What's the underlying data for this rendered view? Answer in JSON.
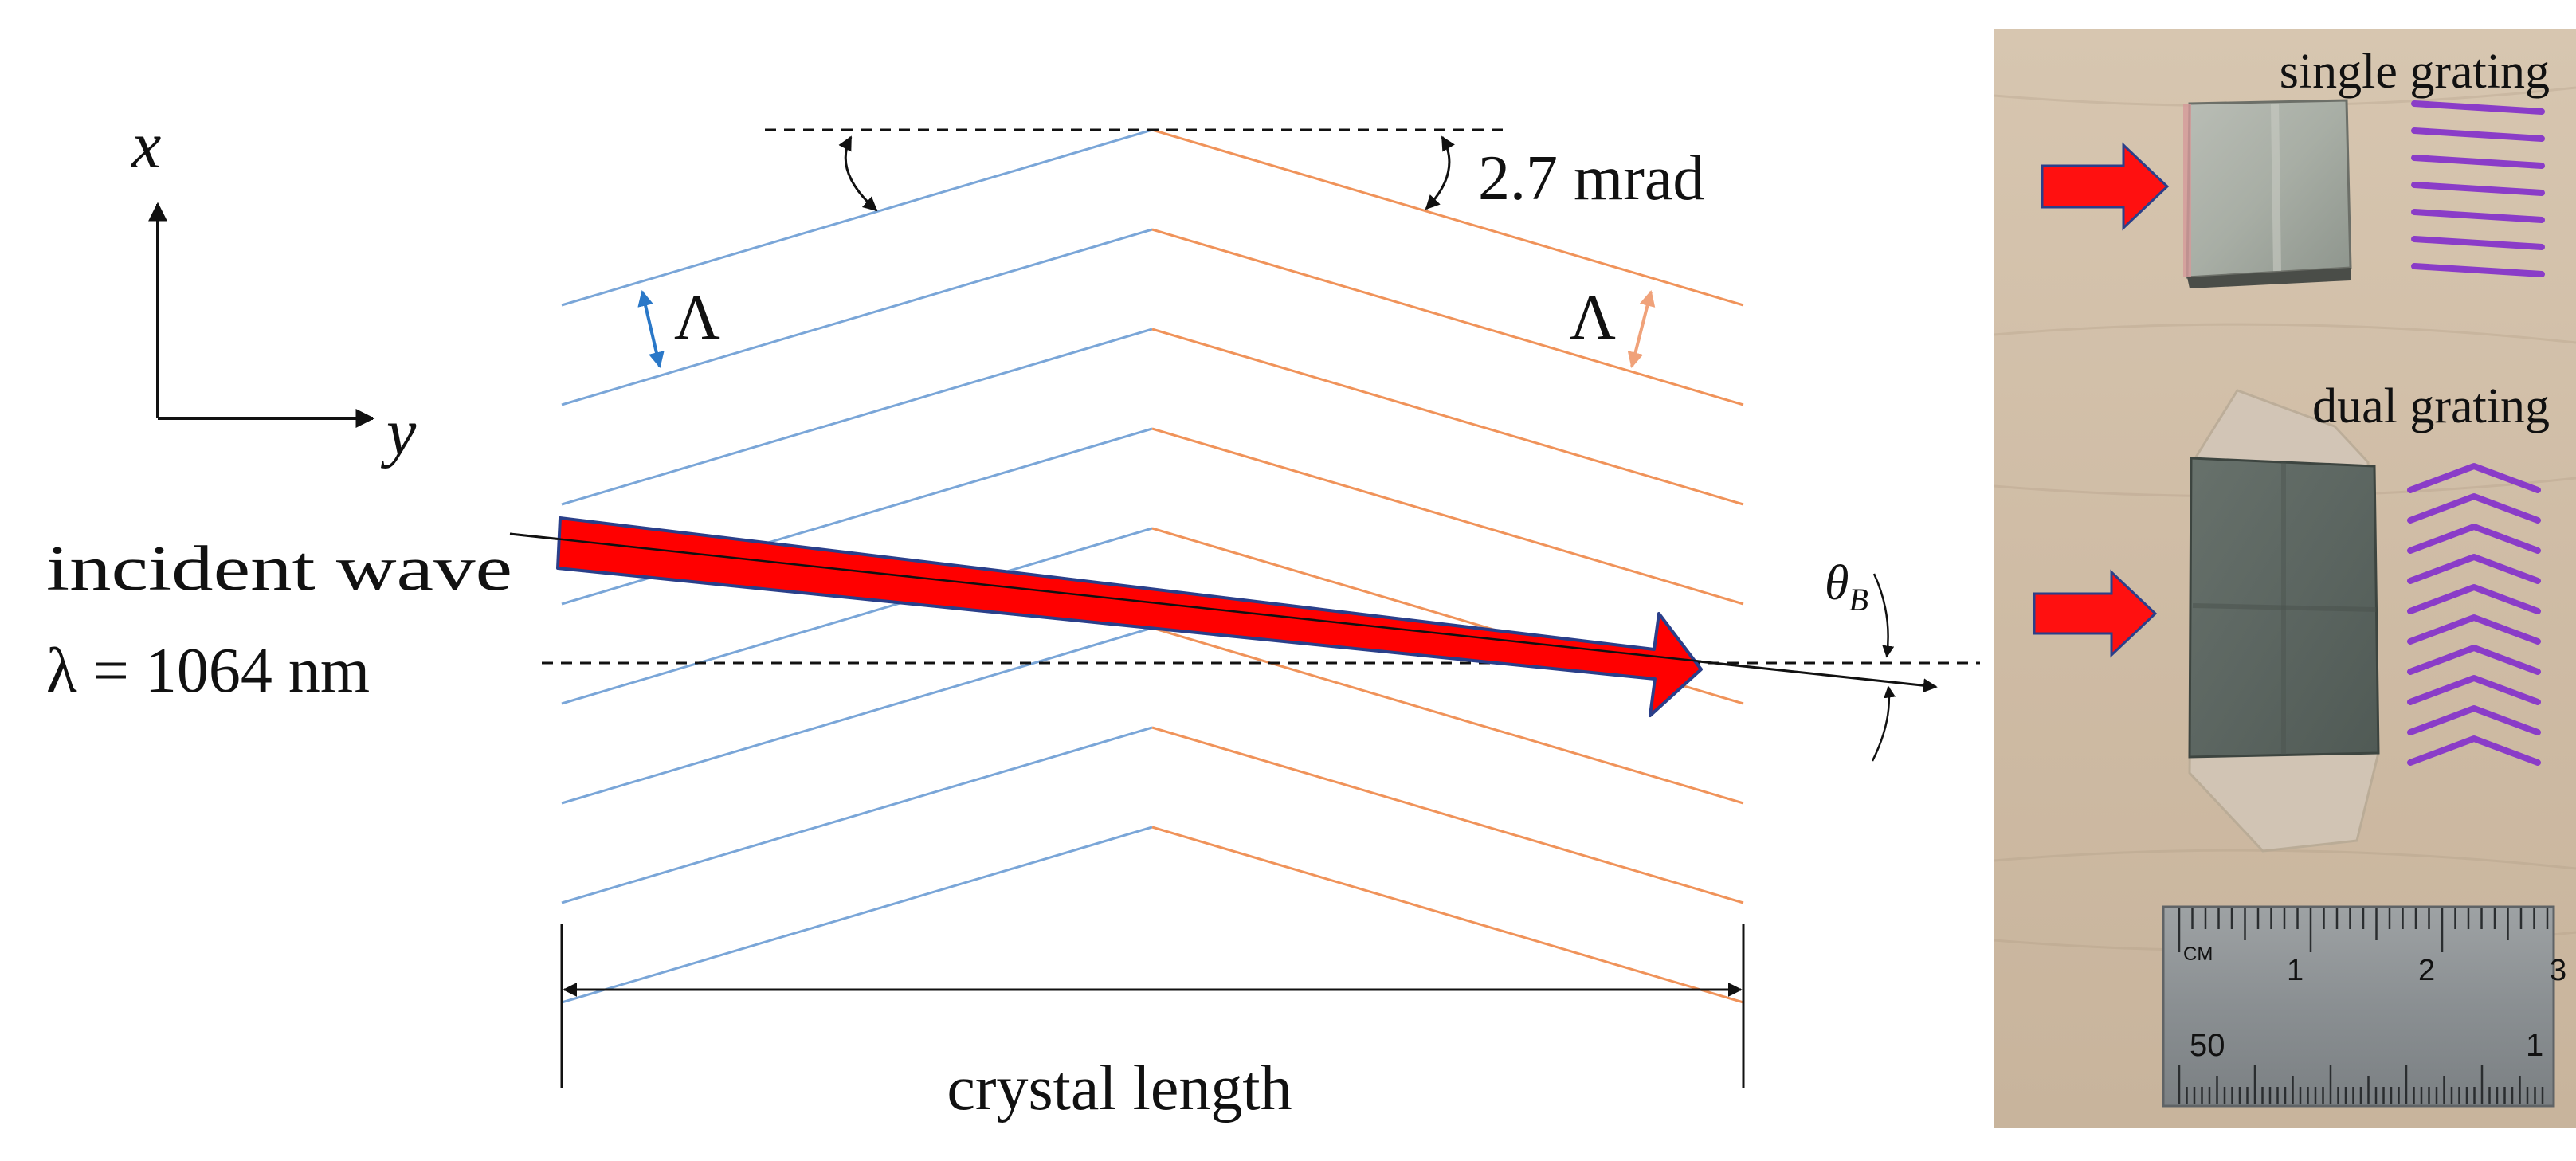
{
  "diagram": {
    "axes": {
      "x_label": "x",
      "y_label": "y"
    },
    "angle_label": "2.7 mrad",
    "period_label_left": "Λ",
    "period_label_right": "Λ",
    "incident_label_line1": "incident wave",
    "incident_label_line2": "λ = 1064 nm",
    "bragg_label": "θ",
    "bragg_subscript": "B",
    "length_label": "crystal length",
    "grating_line_count": 8,
    "colors": {
      "left_grating": "#7aa6d8",
      "right_grating": "#f0935a",
      "beam": "#ff0000",
      "beam_outline": "#2a3f8a",
      "period_arrow_left": "#2a78c8",
      "period_arrow_right": "#f0a27a"
    }
  },
  "photo": {
    "label_single": "single grating",
    "label_dual": "dual grating",
    "icon_single": "parallel-lines-icon",
    "icon_dual": "chevron-lines-icon",
    "arrow_color": "#ff1010",
    "line_icon_color": "#8a3cc8",
    "ruler": {
      "unit_label": "CM",
      "top_numbers": [
        "1",
        "2",
        "3"
      ],
      "bottom_numbers": [
        "50",
        "1"
      ]
    }
  }
}
